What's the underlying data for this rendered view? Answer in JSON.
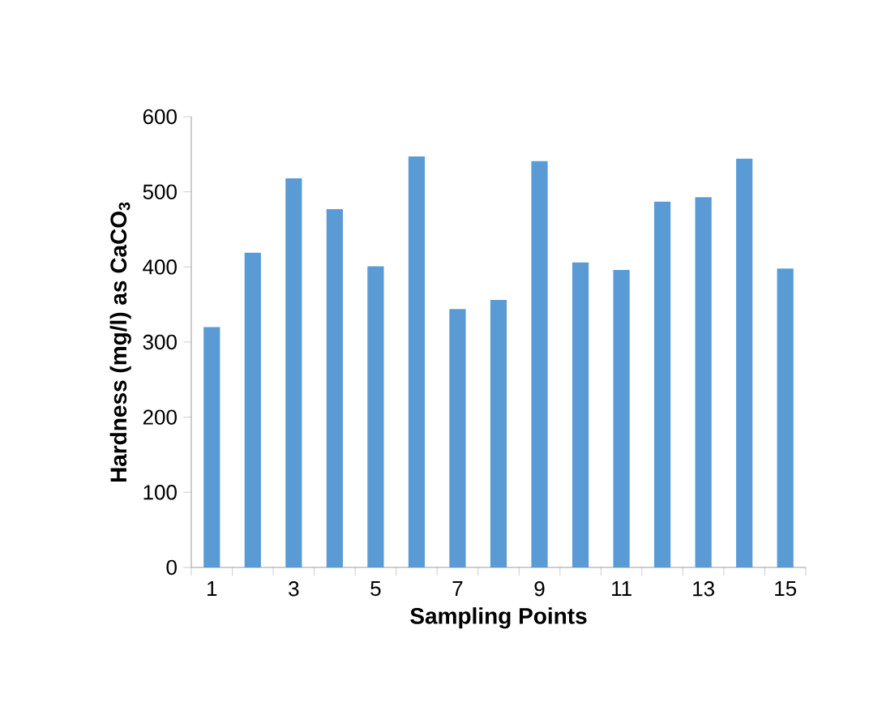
{
  "chart_data": {
    "type": "bar",
    "xlabel": "Sampling Points",
    "ylabel": "Hardness (mg/l) as CaCO$_{3}$",
    "categories": [
      "1",
      null,
      "3",
      null,
      "5",
      null,
      "7",
      null,
      "9",
      null,
      "11",
      null,
      "13",
      null,
      "15"
    ],
    "values": [
      320,
      419,
      518,
      477,
      401,
      547,
      344,
      356,
      541,
      406,
      396,
      487,
      493,
      544,
      398
    ],
    "color": "#5b9bd5",
    "ylim": [
      0,
      600
    ],
    "yticks": [
      0,
      100,
      200,
      300,
      400,
      500,
      600
    ]
  }
}
